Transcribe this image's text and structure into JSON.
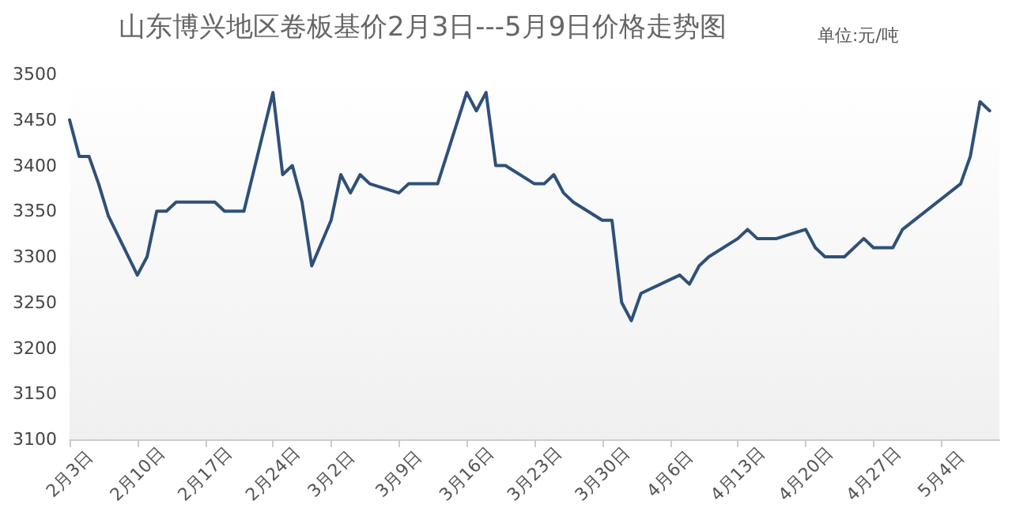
{
  "chart_data": {
    "type": "line",
    "title": "山东博兴地区卷板基价2月3日---5月9日价格走势图",
    "subtitle": "单位:元/吨",
    "x": [
      "--02-03",
      "--02-04",
      "--02-05",
      "--02-06",
      "--02-07",
      "--02-10",
      "--02-11",
      "--02-12",
      "--02-13",
      "--02-14",
      "--02-17",
      "--02-18",
      "--02-19",
      "--02-20",
      "--02-21",
      "--02-24",
      "--02-25",
      "--02-26",
      "--02-27",
      "--02-28",
      "--03-02",
      "--03-03",
      "--03-04",
      "--03-05",
      "--03-06",
      "--03-09",
      "--03-10",
      "--03-11",
      "--03-12",
      "--03-13",
      "--03-16",
      "--03-17",
      "--03-18",
      "--03-19",
      "--03-20",
      "--03-23",
      "--03-24",
      "--03-25",
      "--03-26",
      "--03-27",
      "--03-30",
      "--03-31",
      "--04-01",
      "--04-02",
      "--04-03",
      "--04-07",
      "--04-08",
      "--04-09",
      "--04-10",
      "--04-13",
      "--04-14",
      "--04-15",
      "--04-16",
      "--04-17",
      "--04-20",
      "--04-21",
      "--04-22",
      "--04-23",
      "--04-24",
      "--04-26",
      "--04-27",
      "--04-28",
      "--04-29",
      "--04-30",
      "--05-06",
      "--05-07",
      "--05-08",
      "--05-09"
    ],
    "series": [
      {
        "color": "#2f5078",
        "values": [
          3450,
          3410,
          3410,
          3380,
          3345,
          3280,
          3300,
          3350,
          3350,
          3360,
          3360,
          3360,
          3350,
          3350,
          3350,
          3480,
          3390,
          3400,
          3360,
          3290,
          3340,
          3390,
          3370,
          3390,
          3380,
          3370,
          3380,
          3380,
          3380,
          3380,
          3480,
          3460,
          3480,
          3400,
          3400,
          3380,
          3380,
          3390,
          3370,
          3360,
          3340,
          3340,
          3250,
          3230,
          3260,
          3280,
          3270,
          3290,
          3300,
          3320,
          3330,
          3320,
          3320,
          3320,
          3330,
          3310,
          3300,
          3300,
          3300,
          3320,
          3310,
          3310,
          3310,
          3330,
          3380,
          3410,
          3470,
          3460
        ]
      }
    ],
    "xlim": [
      "--02-03",
      "--05-10"
    ],
    "xticks": [
      {
        "value": "--02-03",
        "label": "2月3日"
      },
      {
        "value": "--02-10",
        "label": "2月10日"
      },
      {
        "value": "--02-17",
        "label": "2月17日"
      },
      {
        "value": "--02-24",
        "label": "2月24日"
      },
      {
        "value": "--03-02",
        "label": "3月2日"
      },
      {
        "value": "--03-09",
        "label": "3月9日"
      },
      {
        "value": "--03-16",
        "label": "3月16日"
      },
      {
        "value": "--03-23",
        "label": "3月23日"
      },
      {
        "value": "--03-30",
        "label": "3月30日"
      },
      {
        "value": "--04-06",
        "label": "4月6日"
      },
      {
        "value": "--04-13",
        "label": "4月13日"
      },
      {
        "value": "--04-20",
        "label": "4月20日"
      },
      {
        "value": "--04-27",
        "label": "4月27日"
      },
      {
        "value": "--05-04",
        "label": "5月4日"
      }
    ],
    "ylim": [
      3100,
      3500
    ],
    "yticks": [
      3100,
      3150,
      3200,
      3250,
      3300,
      3350,
      3400,
      3450,
      3500
    ],
    "grid": false,
    "marker": "none",
    "line_style": "solid"
  }
}
